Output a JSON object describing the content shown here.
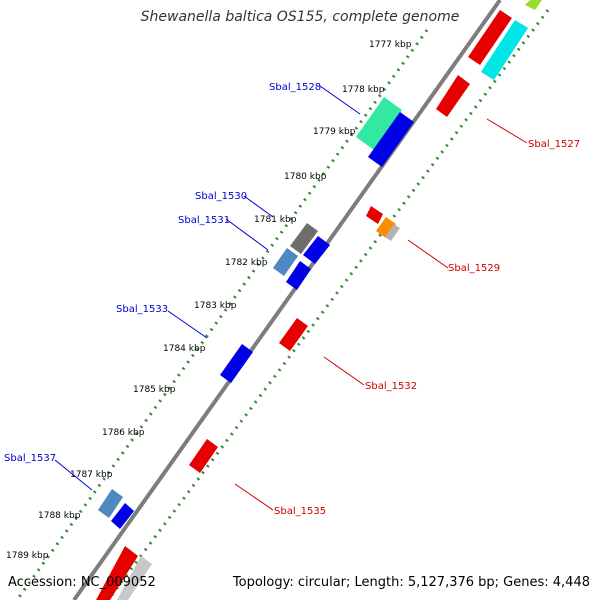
{
  "title": "Shewanella baltica OS155, complete genome",
  "footer": {
    "accession": "Accession: NC_009052",
    "summary": "Topology: circular; Length: 5,127,376 bp; Genes: 4,448"
  },
  "colors": {
    "backbone": "#7d7d7d",
    "tick": "#2e8b2e",
    "label_plus": "#0000cc",
    "label_minus": "#cc0000"
  },
  "ticks": [
    "1777 kbp",
    "1778 kbp",
    "1779 kbp",
    "1780 kbp",
    "1781 kbp",
    "1782 kbp",
    "1783 kbp",
    "1784 kbp",
    "1785 kbp",
    "1786 kbp",
    "1787 kbp",
    "1788 kbp",
    "1789 kbp"
  ],
  "labels_plus": [
    "Sbal_1528",
    "Sbal_1530",
    "Sbal_1531",
    "Sbal_1533",
    "Sbal_1537"
  ],
  "labels_minus": [
    "Sbal_1527",
    "Sbal_1529",
    "Sbal_1532",
    "Sbal_1535"
  ]
}
